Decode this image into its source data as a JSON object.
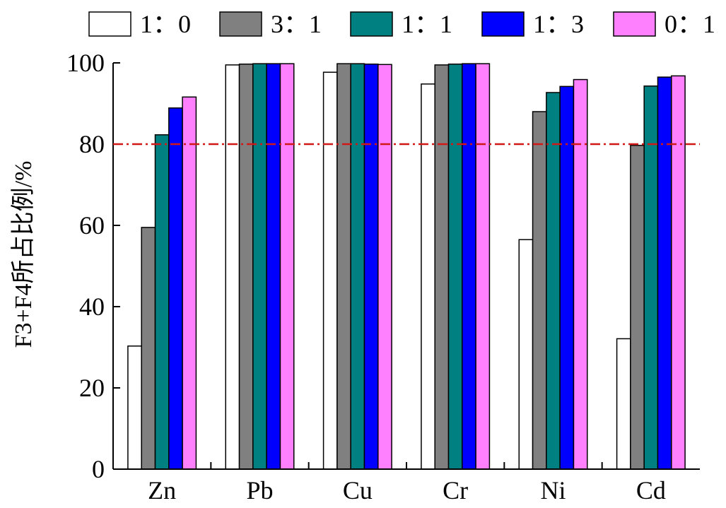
{
  "chart_data": {
    "type": "bar",
    "title": "",
    "xlabel": "",
    "ylabel": "F3+F4所占比例/%",
    "ylim": [
      0,
      100
    ],
    "yticks": [
      0,
      20,
      40,
      60,
      80,
      100
    ],
    "categories": [
      "Zn",
      "Pb",
      "Cu",
      "Cr",
      "Ni",
      "Cd"
    ],
    "series": [
      {
        "name": "1：0",
        "color": "#ffffff",
        "values": [
          30.3,
          99.5,
          97.7,
          94.8,
          56.5,
          32.1
        ]
      },
      {
        "name": "3：1",
        "color": "#808080",
        "values": [
          59.5,
          99.7,
          99.8,
          99.5,
          88.0,
          79.7
        ]
      },
      {
        "name": "1：1",
        "color": "#008080",
        "values": [
          82.3,
          99.8,
          99.8,
          99.7,
          92.7,
          94.3
        ]
      },
      {
        "name": "1：3",
        "color": "#0000ff",
        "values": [
          88.9,
          99.8,
          99.7,
          99.8,
          94.2,
          96.5
        ]
      },
      {
        "name": "0：1",
        "color": "#ff80ff",
        "values": [
          91.6,
          99.8,
          99.6,
          99.8,
          95.9,
          96.8
        ]
      }
    ],
    "reference_line": {
      "value": 80,
      "style": "dash-dot",
      "color": "#d01818"
    },
    "grid": false,
    "legend_position": "top"
  }
}
